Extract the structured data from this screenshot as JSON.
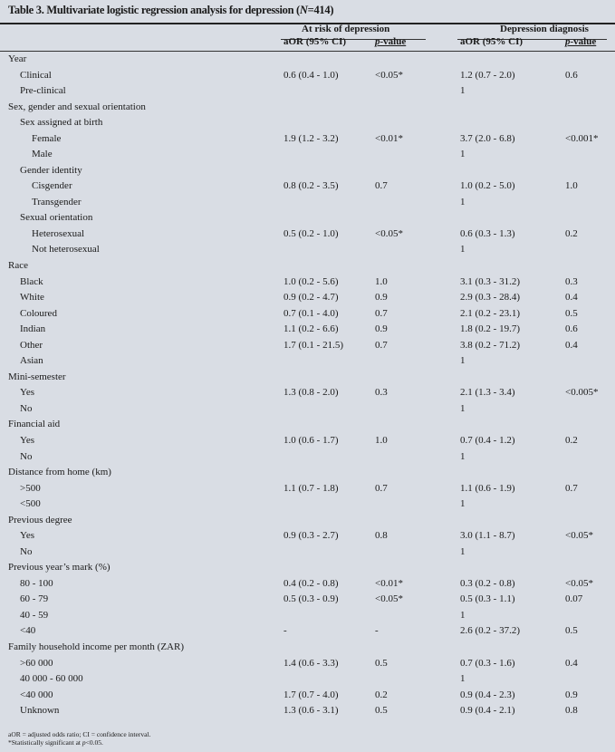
{
  "title": "Table 3. Multivariate logistic regression analysis for depression (N=414)",
  "title_parts": {
    "prefix": "Table 3. Multivariate logistic regression analysis for depression (",
    "n_label": "N",
    "suffix": "=414)"
  },
  "groups": [
    "At risk of depression",
    "Depression diagnosis"
  ],
  "columns": {
    "aor": "aOR (95% CI)",
    "p_italic": "p",
    "p_rest": "-value"
  },
  "rows": [
    {
      "label": "Year",
      "indent": 0
    },
    {
      "label": "Clinical",
      "indent": 1,
      "aor1": "0.6 (0.4 - 1.0)",
      "p1": "<0.05*",
      "aor2": "1.2 (0.7 - 2.0)",
      "p2": "0.6"
    },
    {
      "label": "Pre-clinical",
      "indent": 1,
      "aor2": "1"
    },
    {
      "label": "Sex, gender and sexual orientation",
      "indent": 0
    },
    {
      "label": "Sex assigned at birth",
      "indent": 1
    },
    {
      "label": "Female",
      "indent": 2,
      "aor1": "1.9 (1.2 - 3.2)",
      "p1": "<0.01*",
      "aor2": "3.7 (2.0 - 6.8)",
      "p2": "<0.001*"
    },
    {
      "label": "Male",
      "indent": 2,
      "aor2": "1"
    },
    {
      "label": "Gender identity",
      "indent": 1
    },
    {
      "label": "Cisgender",
      "indent": 2,
      "aor1": "0.8 (0.2 - 3.5)",
      "p1": "0.7",
      "aor2": "1.0 (0.2 - 5.0)",
      "p2": "1.0"
    },
    {
      "label": "Transgender",
      "indent": 2,
      "aor2": "1"
    },
    {
      "label": "Sexual orientation",
      "indent": 1
    },
    {
      "label": "Heterosexual",
      "indent": 2,
      "aor1": "0.5 (0.2 - 1.0)",
      "p1": "<0.05*",
      "aor2": "0.6 (0.3 - 1.3)",
      "p2": "0.2"
    },
    {
      "label": "Not heterosexual",
      "indent": 2,
      "aor2": "1"
    },
    {
      "label": "Race",
      "indent": 0
    },
    {
      "label": "Black",
      "indent": 1,
      "aor1": "1.0 (0.2 - 5.6)",
      "p1": "1.0",
      "aor2": "3.1 (0.3 - 31.2)",
      "p2": "0.3"
    },
    {
      "label": "White",
      "indent": 1,
      "aor1": "0.9 (0.2 - 4.7)",
      "p1": "0.9",
      "aor2": "2.9 (0.3 - 28.4)",
      "p2": "0.4"
    },
    {
      "label": "Coloured",
      "indent": 1,
      "aor1": "0.7 (0.1 - 4.0)",
      "p1": "0.7",
      "aor2": "2.1 (0.2 - 23.1)",
      "p2": "0.5"
    },
    {
      "label": "Indian",
      "indent": 1,
      "aor1": "1.1 (0.2 - 6.6)",
      "p1": "0.9",
      "aor2": "1.8 (0.2 - 19.7)",
      "p2": "0.6"
    },
    {
      "label": "Other",
      "indent": 1,
      "aor1": "1.7 (0.1 - 21.5)",
      "p1": "0.7",
      "aor2": "3.8 (0.2 - 71.2)",
      "p2": "0.4"
    },
    {
      "label": "Asian",
      "indent": 1,
      "aor2": "1"
    },
    {
      "label": "Mini-semester",
      "indent": 0
    },
    {
      "label": "Yes",
      "indent": 1,
      "aor1": "1.3 (0.8 - 2.0)",
      "p1": "0.3",
      "aor2": "2.1 (1.3 - 3.4)",
      "p2": "<0.005*"
    },
    {
      "label": "No",
      "indent": 1,
      "aor2": "1"
    },
    {
      "label": "Financial aid",
      "indent": 0
    },
    {
      "label": "Yes",
      "indent": 1,
      "aor1": "1.0 (0.6 - 1.7)",
      "p1": "1.0",
      "aor2": "0.7 (0.4 - 1.2)",
      "p2": "0.2"
    },
    {
      "label": "No",
      "indent": 1,
      "aor2": "1"
    },
    {
      "label": "Distance from home (km)",
      "indent": 0
    },
    {
      "label": ">500",
      "indent": 1,
      "aor1": "1.1 (0.7 - 1.8)",
      "p1": "0.7",
      "aor2": "1.1 (0.6 - 1.9)",
      "p2": "0.7"
    },
    {
      "label": "<500",
      "indent": 1,
      "aor2": "1"
    },
    {
      "label": "Previous degree",
      "indent": 0
    },
    {
      "label": "Yes",
      "indent": 1,
      "aor1": "0.9 (0.3 - 2.7)",
      "p1": "0.8",
      "aor2": "3.0 (1.1 - 8.7)",
      "p2": "<0.05*"
    },
    {
      "label": "No",
      "indent": 1,
      "aor2": "1"
    },
    {
      "label": "Previous year’s mark (%)",
      "indent": 0
    },
    {
      "label": "80 - 100",
      "indent": 1,
      "aor1": "0.4 (0.2 - 0.8)",
      "p1": "<0.01*",
      "aor2": "0.3 (0.2 - 0.8)",
      "p2": "<0.05*"
    },
    {
      "label": "60 - 79",
      "indent": 1,
      "aor1": "0.5 (0.3 - 0.9)",
      "p1": "<0.05*",
      "aor2": "0.5 (0.3 - 1.1)",
      "p2": "0.07"
    },
    {
      "label": "40 - 59",
      "indent": 1,
      "aor2": "1"
    },
    {
      "label": "<40",
      "indent": 1,
      "aor1": "-",
      "p1": "-",
      "aor2": "2.6 (0.2 - 37.2)",
      "p2": "0.5"
    },
    {
      "label": "Family household income per month (ZAR)",
      "indent": 0
    },
    {
      "label": ">60 000",
      "indent": 1,
      "aor1": "1.4 (0.6 - 3.3)",
      "p1": "0.5",
      "aor2": "0.7 (0.3 - 1.6)",
      "p2": "0.4"
    },
    {
      "label": "40 000 - 60 000",
      "indent": 1,
      "aor2": "1"
    },
    {
      "label": "<40 000",
      "indent": 1,
      "aor1": "1.7 (0.7 - 4.0)",
      "p1": "0.2",
      "aor2": "0.9 (0.4 - 2.3)",
      "p2": "0.9"
    },
    {
      "label": "Unknown",
      "indent": 1,
      "aor1": "1.3 (0.6 - 3.1)",
      "p1": "0.5",
      "aor2": "0.9 (0.4 - 2.1)",
      "p2": "0.8"
    }
  ],
  "footnotes": {
    "abbrev": "aOR = adjusted odds ratio; CI = confidence interval.",
    "sig_prefix": "*Statistically significant at ",
    "sig_italic": "p",
    "sig_suffix": "<0.05."
  }
}
